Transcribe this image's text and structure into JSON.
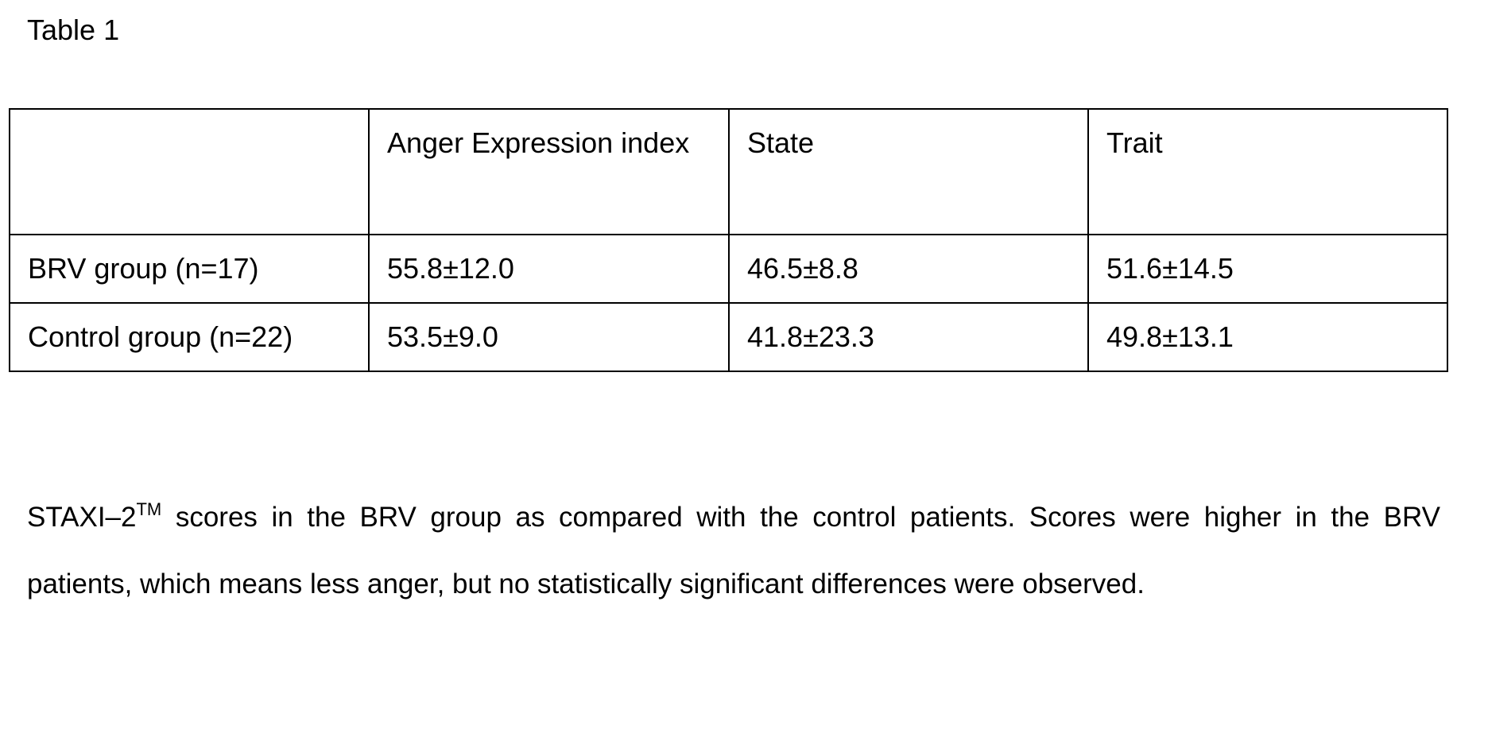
{
  "title": "Table 1",
  "table": {
    "header": [
      "Anger Expression index",
      "State",
      "Trait"
    ],
    "rows": [
      [
        "BRV group (n=17)",
        "55.8±12.0",
        "46.5±8.8",
        "51.6±14.5"
      ],
      [
        "Control group (n=22)",
        "53.5±9.0",
        "41.8±23.3",
        "49.8±13.1"
      ]
    ]
  },
  "caption": {
    "lead": "STAXI–2",
    "superscript": "TM",
    "text": " scores in the BRV group as compared with the control patients. Scores were higher in the BRV patients, which means less anger, but no statistically significant differences were observed."
  }
}
